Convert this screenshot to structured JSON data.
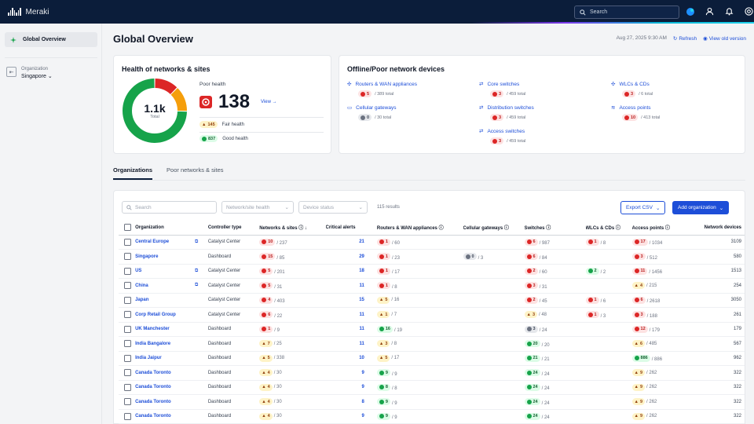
{
  "app": {
    "brand": "Meraki"
  },
  "topbar": {
    "search_placeholder": "Search"
  },
  "sidebar": {
    "active_item": "Global Overview",
    "org_label": "Organization",
    "org_value": "Singapore"
  },
  "header": {
    "title": "Global Overview",
    "timestamp": "Aug 27, 2025 9:30 AM",
    "refresh": "Refresh",
    "old_version": "View old version"
  },
  "health": {
    "title": "Health of networks & sites",
    "total": "1.1k",
    "total_label": "Total",
    "poor_label": "Poor health",
    "poor_value": "138",
    "view": "View",
    "fair_count": "145",
    "fair_label": "Fair health",
    "good_count": "837",
    "good_label": "Good health",
    "segments": {
      "poor": 138,
      "fair": 145,
      "good": 837
    }
  },
  "offline": {
    "title": "Offline/Poor network devices",
    "devices": [
      {
        "name": "Routers & WAN appliances",
        "count": "5",
        "total": "/ 389 total",
        "color": "red"
      },
      {
        "name": "Core switches",
        "count": "3",
        "total": "/ 459 total",
        "color": "red"
      },
      {
        "name": "WLCs & CDs",
        "count": "3",
        "total": "/ 6 total",
        "color": "red"
      },
      {
        "name": "Cellular gateways",
        "count": "0",
        "total": "/ 30 total",
        "color": "gray"
      },
      {
        "name": "Distribution switches",
        "count": "3",
        "total": "/ 459 total",
        "color": "red"
      },
      {
        "name": "Access points",
        "count": "10",
        "total": "/ 413 total",
        "color": "red"
      },
      {
        "name": "Access switches",
        "count": "3",
        "total": "/ 459 total",
        "color": "red"
      }
    ]
  },
  "tabs": [
    "Organizations",
    "Poor networks & sites"
  ],
  "filters": {
    "search": "Search",
    "network_health": "Network/site health",
    "device_status": "Device status",
    "results": "115 results",
    "export": "Export CSV",
    "add": "Add organization"
  },
  "table": {
    "columns": [
      "Organization",
      "Controller type",
      "Networks & sites",
      "Critical alerts",
      "Routers & WAN appliances",
      "Cellular gateways",
      "Switches",
      "WLCs & CDs",
      "Access points",
      "Network devices"
    ],
    "rows": [
      {
        "org": "Central Europe",
        "ext": true,
        "ctrl": "Catalyst Center",
        "net": [
          "red",
          "10",
          "/ 237"
        ],
        "alerts": "21",
        "rtr": [
          "red",
          "1",
          "/ 60"
        ],
        "cell": null,
        "sw": [
          "red",
          "6",
          "/ 987"
        ],
        "wlc": [
          "red",
          "1",
          "/ 8"
        ],
        "ap": [
          "red",
          "17",
          "/ 1034"
        ],
        "dev": "3109"
      },
      {
        "org": "Singapore",
        "ext": false,
        "ctrl": "Dashboard",
        "net": [
          "red",
          "15",
          "/ 85"
        ],
        "alerts": "29",
        "rtr": [
          "red",
          "1",
          "/ 23"
        ],
        "cell": [
          "gray",
          "0",
          "/ 3"
        ],
        "sw": [
          "red",
          "6",
          "/ 84"
        ],
        "wlc": null,
        "ap": [
          "red",
          "3",
          "/ 512"
        ],
        "dev": "580"
      },
      {
        "org": "US",
        "ext": true,
        "ctrl": "Catalyst Center",
        "net": [
          "red",
          "5",
          "/ 201"
        ],
        "alerts": "18",
        "rtr": [
          "red",
          "1",
          "/ 17"
        ],
        "cell": null,
        "sw": [
          "red",
          "2",
          "/ 60"
        ],
        "wlc": [
          "grn",
          "2",
          "/ 2"
        ],
        "ap": [
          "red",
          "11",
          "/ 1456"
        ],
        "dev": "1513"
      },
      {
        "org": "China",
        "ext": true,
        "ctrl": "Catalyst Center",
        "net": [
          "red",
          "5",
          "/ 31"
        ],
        "alerts": "11",
        "rtr": [
          "red",
          "1",
          "/ 8"
        ],
        "cell": null,
        "sw": [
          "red",
          "3",
          "/ 31"
        ],
        "wlc": null,
        "ap": [
          "yel",
          "4",
          "/ 215"
        ],
        "dev": "254"
      },
      {
        "org": "Japan",
        "ext": false,
        "ctrl": "Catalyst Center",
        "net": [
          "red",
          "4",
          "/ 403"
        ],
        "alerts": "15",
        "rtr": [
          "yel",
          "5",
          "/ 16"
        ],
        "cell": null,
        "sw": [
          "red",
          "2",
          "/ 45"
        ],
        "wlc": [
          "red",
          "1",
          "/ 6"
        ],
        "ap": [
          "red",
          "6",
          "/ 2618"
        ],
        "dev": "3050"
      },
      {
        "org": "Corp Retail Group",
        "ext": false,
        "ctrl": "Catalyst Center",
        "net": [
          "red",
          "6",
          "/ 22"
        ],
        "alerts": "11",
        "rtr": [
          "yel",
          "1",
          "/ 7"
        ],
        "cell": null,
        "sw": [
          "yel",
          "3",
          "/ 48"
        ],
        "wlc": [
          "red",
          "1",
          "/ 3"
        ],
        "ap": [
          "red",
          "3",
          "/ 188"
        ],
        "dev": "261"
      },
      {
        "org": "UK Manchester",
        "ext": false,
        "ctrl": "Dashboard",
        "net": [
          "red",
          "1",
          "/ 9"
        ],
        "alerts": "11",
        "rtr": [
          "grn",
          "16",
          "/ 19"
        ],
        "cell": null,
        "sw": [
          "gry",
          "3",
          "/ 24"
        ],
        "wlc": null,
        "ap": [
          "red",
          "12",
          "/ 179"
        ],
        "dev": "179"
      },
      {
        "org": "India Bangalore",
        "ext": false,
        "ctrl": "Dashboard",
        "net": [
          "yel",
          "7",
          "/ 25"
        ],
        "alerts": "11",
        "rtr": [
          "yel",
          "3",
          "/ 8"
        ],
        "cell": null,
        "sw": [
          "grn",
          "20",
          "/ 20"
        ],
        "wlc": null,
        "ap": [
          "yel",
          "6",
          "/ 485"
        ],
        "dev": "567"
      },
      {
        "org": "India Jaipur",
        "ext": false,
        "ctrl": "Dashboard",
        "net": [
          "yel",
          "5",
          "/ 338"
        ],
        "alerts": "10",
        "rtr": [
          "yel",
          "5",
          "/ 17"
        ],
        "cell": null,
        "sw": [
          "grn",
          "21",
          "/ 21"
        ],
        "wlc": null,
        "ap": [
          "grn",
          "886",
          "/ 886"
        ],
        "dev": "962"
      },
      {
        "org": "Canada Toronto",
        "ext": false,
        "ctrl": "Dashboard",
        "net": [
          "yel",
          "4",
          "/ 30"
        ],
        "alerts": "9",
        "rtr": [
          "grn",
          "9",
          "/ 9"
        ],
        "cell": null,
        "sw": [
          "grn",
          "24",
          "/ 24"
        ],
        "wlc": null,
        "ap": [
          "yel",
          "9",
          "/ 262"
        ],
        "dev": "322"
      },
      {
        "org": "Canada Toronto",
        "ext": false,
        "ctrl": "Dashboard",
        "net": [
          "yel",
          "4",
          "/ 30"
        ],
        "alerts": "9",
        "rtr": [
          "grn",
          "8",
          "/ 8"
        ],
        "cell": null,
        "sw": [
          "grn",
          "24",
          "/ 24"
        ],
        "wlc": null,
        "ap": [
          "yel",
          "9",
          "/ 262"
        ],
        "dev": "322"
      },
      {
        "org": "Canada Toronto",
        "ext": false,
        "ctrl": "Dashboard",
        "net": [
          "yel",
          "4",
          "/ 30"
        ],
        "alerts": "8",
        "rtr": [
          "grn",
          "9",
          "/ 9"
        ],
        "cell": null,
        "sw": [
          "grn",
          "24",
          "/ 24"
        ],
        "wlc": null,
        "ap": [
          "yel",
          "9",
          "/ 262"
        ],
        "dev": "322"
      },
      {
        "org": "Canada Toronto",
        "ext": false,
        "ctrl": "Dashboard",
        "net": [
          "yel",
          "4",
          "/ 30"
        ],
        "alerts": "9",
        "rtr": [
          "grn",
          "9",
          "/ 9"
        ],
        "cell": null,
        "sw": [
          "grn",
          "24",
          "/ 24"
        ],
        "wlc": null,
        "ap": [
          "yel",
          "9",
          "/ 262"
        ],
        "dev": "322"
      }
    ]
  },
  "colors": {
    "topbar": "#0b1d3a",
    "link": "#1d4ed8",
    "poor": "#dc2626",
    "fair": "#f59e0b",
    "good": "#16a34a"
  }
}
